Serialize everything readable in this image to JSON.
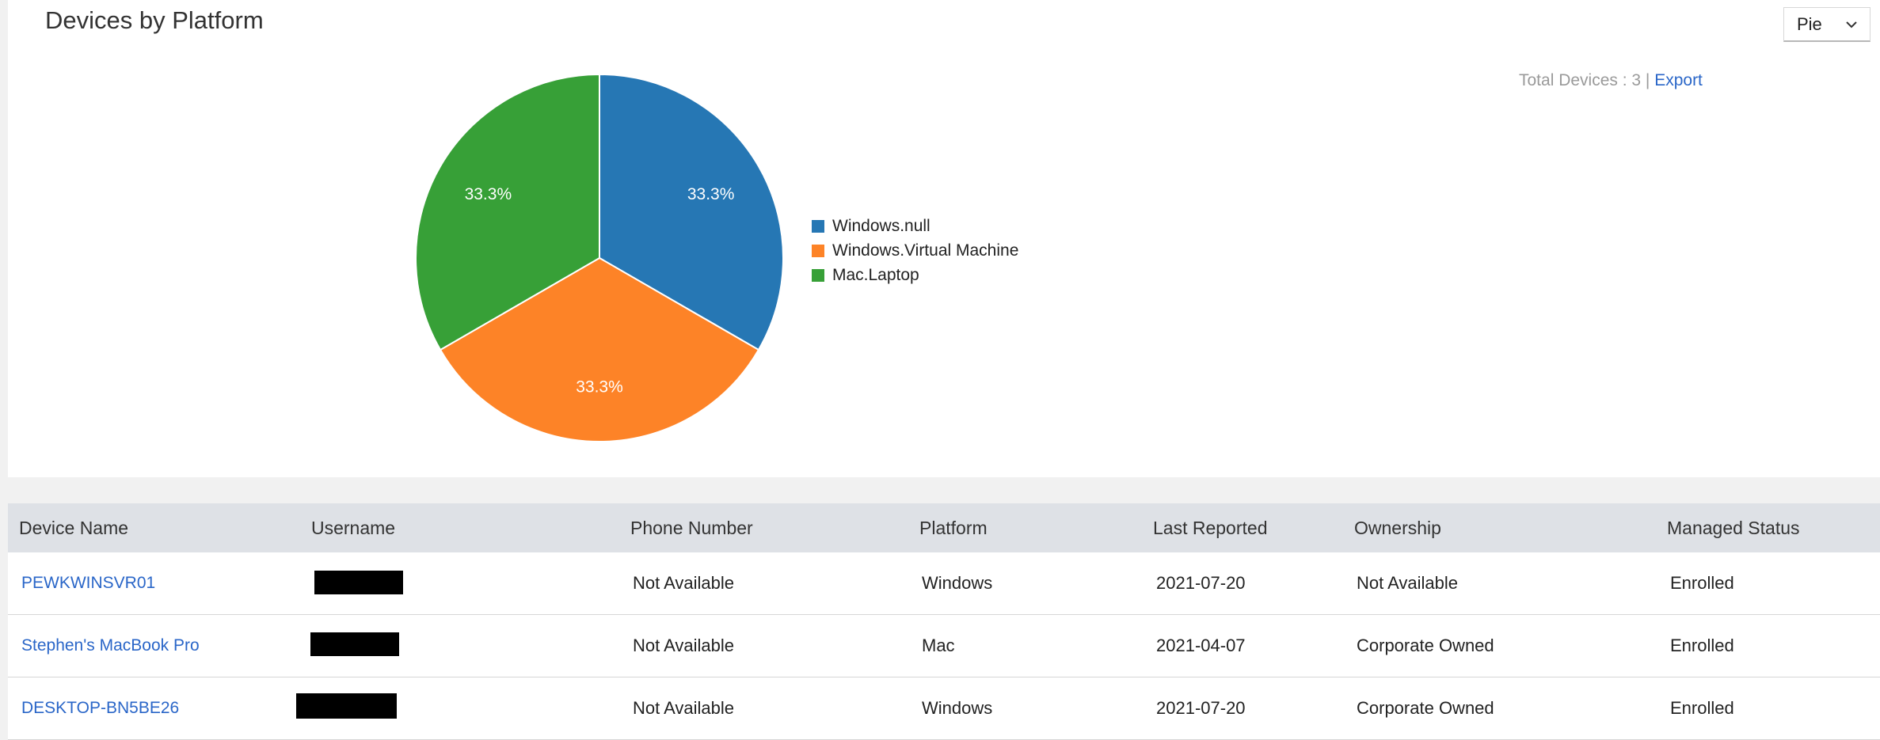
{
  "panel": {
    "title": "Devices by Platform",
    "chart_type_selected": "Pie",
    "total_label": "Total Devices : 3 |",
    "export_label": "Export"
  },
  "chart_data": {
    "type": "pie",
    "title": "Devices by Platform",
    "labels": [
      "Windows.null",
      "Windows.Virtual Machine",
      "Mac.Laptop"
    ],
    "values": [
      1,
      1,
      1
    ],
    "percent_labels": [
      "33.3%",
      "33.3%",
      "33.3%"
    ],
    "colors": [
      "#2677b4",
      "#fd8327",
      "#37a037"
    ],
    "legend_position": "right"
  },
  "table": {
    "headers": [
      "Device Name",
      "Username",
      "Phone Number",
      "Platform",
      "Last Reported",
      "Ownership",
      "Managed Status"
    ],
    "rows": [
      {
        "device": "PEWKWINSVR01",
        "username": "[redacted]",
        "phone": "Not Available",
        "platform": "Windows",
        "last_reported": "2021-07-20",
        "ownership": "Not Available",
        "status": "Enrolled"
      },
      {
        "device": "Stephen's MacBook Pro",
        "username": "[redacted]",
        "phone": "Not Available",
        "platform": "Mac",
        "last_reported": "2021-04-07",
        "ownership": "Corporate Owned",
        "status": "Enrolled"
      },
      {
        "device": "DESKTOP-BN5BE26",
        "username": "[redacted]",
        "phone": "Not Available",
        "platform": "Windows",
        "last_reported": "2021-07-20",
        "ownership": "Corporate Owned",
        "status": "Enrolled"
      }
    ]
  },
  "icons": {
    "dropdown": "chevron-down-icon"
  }
}
